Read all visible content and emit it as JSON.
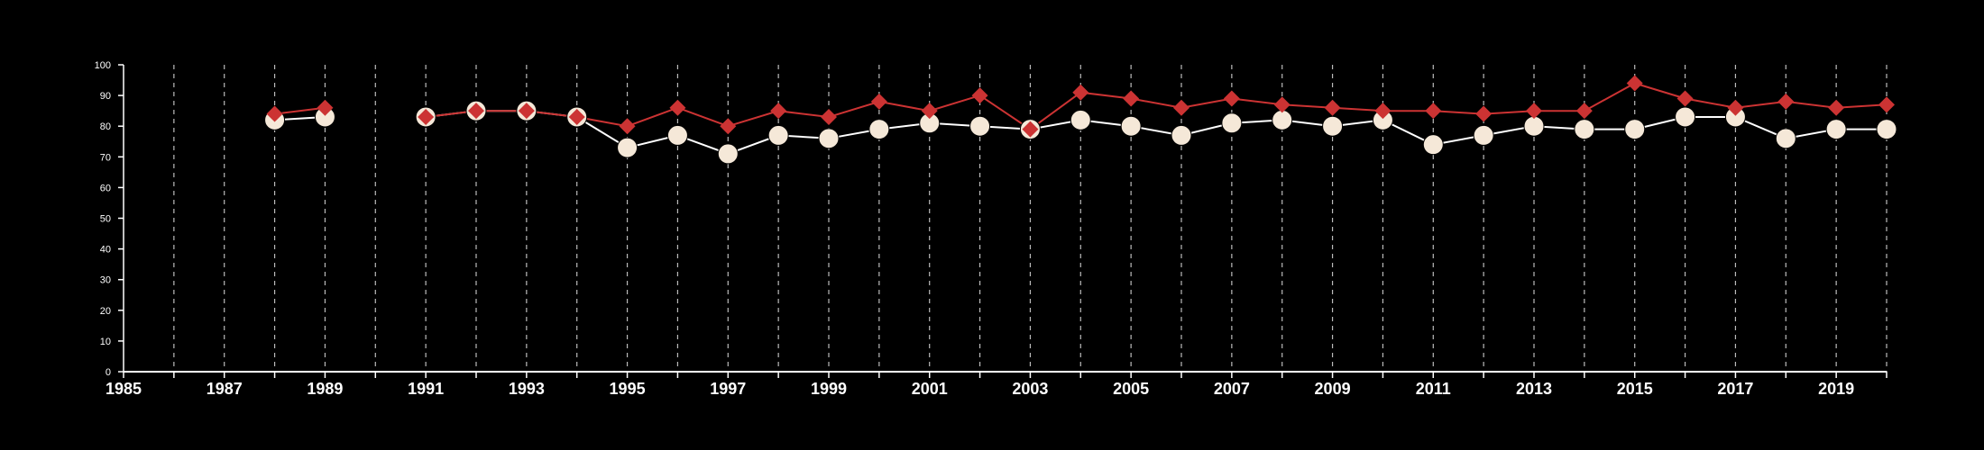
{
  "chart_data": {
    "type": "line",
    "title": "",
    "xlabel": "",
    "ylabel": "",
    "xlim": [
      1985,
      2020
    ],
    "ylim": [
      0,
      100
    ],
    "y_ticks": [
      0,
      10,
      20,
      30,
      40,
      50,
      60,
      70,
      80,
      90,
      100
    ],
    "x_tick_labels": [
      "1985",
      "1987",
      "1989",
      "1991",
      "1993",
      "1995",
      "1997",
      "1999",
      "2001",
      "2003",
      "2005",
      "2007",
      "2009",
      "2011",
      "2013",
      "2015",
      "2017",
      "2019"
    ],
    "x_tick_years": [
      1985,
      1987,
      1989,
      1991,
      1993,
      1995,
      1997,
      1999,
      2001,
      2003,
      2005,
      2007,
      2009,
      2011,
      2013,
      2015,
      2017,
      2019
    ],
    "vertical_gridlines": "dashed, every year",
    "legend": "none",
    "series": [
      {
        "marker": "circle",
        "color": "#f5e8d8",
        "line_color": "#ffffff",
        "points": [
          [
            1988,
            82
          ],
          [
            1989,
            83
          ],
          [
            1991,
            83
          ],
          [
            1992,
            85
          ],
          [
            1993,
            85
          ],
          [
            1994,
            83
          ],
          [
            1995,
            73
          ],
          [
            1996,
            77
          ],
          [
            1997,
            71
          ],
          [
            1998,
            77
          ],
          [
            1999,
            76
          ],
          [
            2000,
            79
          ],
          [
            2001,
            81
          ],
          [
            2002,
            80
          ],
          [
            2003,
            79
          ],
          [
            2004,
            82
          ],
          [
            2005,
            80
          ],
          [
            2006,
            77
          ],
          [
            2007,
            81
          ],
          [
            2008,
            82
          ],
          [
            2009,
            80
          ],
          [
            2010,
            82
          ],
          [
            2011,
            74
          ],
          [
            2012,
            77
          ],
          [
            2013,
            80
          ],
          [
            2014,
            79
          ],
          [
            2015,
            79
          ],
          [
            2016,
            83
          ],
          [
            2017,
            83
          ],
          [
            2018,
            76
          ],
          [
            2019,
            79
          ],
          [
            2020,
            79
          ]
        ]
      },
      {
        "marker": "diamond",
        "color": "#cc3333",
        "line_color": "#cc3333",
        "points": [
          [
            1988,
            84
          ],
          [
            1989,
            86
          ],
          [
            1991,
            83
          ],
          [
            1992,
            85
          ],
          [
            1993,
            85
          ],
          [
            1994,
            83
          ],
          [
            1995,
            80
          ],
          [
            1996,
            86
          ],
          [
            1997,
            80
          ],
          [
            1998,
            85
          ],
          [
            1999,
            83
          ],
          [
            2000,
            88
          ],
          [
            2001,
            85
          ],
          [
            2002,
            90
          ],
          [
            2003,
            79
          ],
          [
            2004,
            91
          ],
          [
            2005,
            89
          ],
          [
            2006,
            86
          ],
          [
            2007,
            89
          ],
          [
            2008,
            87
          ],
          [
            2009,
            86
          ],
          [
            2010,
            85
          ],
          [
            2011,
            85
          ],
          [
            2012,
            84
          ],
          [
            2013,
            85
          ],
          [
            2014,
            85
          ],
          [
            2015,
            94
          ],
          [
            2016,
            89
          ],
          [
            2017,
            86
          ],
          [
            2018,
            88
          ],
          [
            2019,
            86
          ],
          [
            2020,
            87
          ]
        ]
      }
    ]
  }
}
